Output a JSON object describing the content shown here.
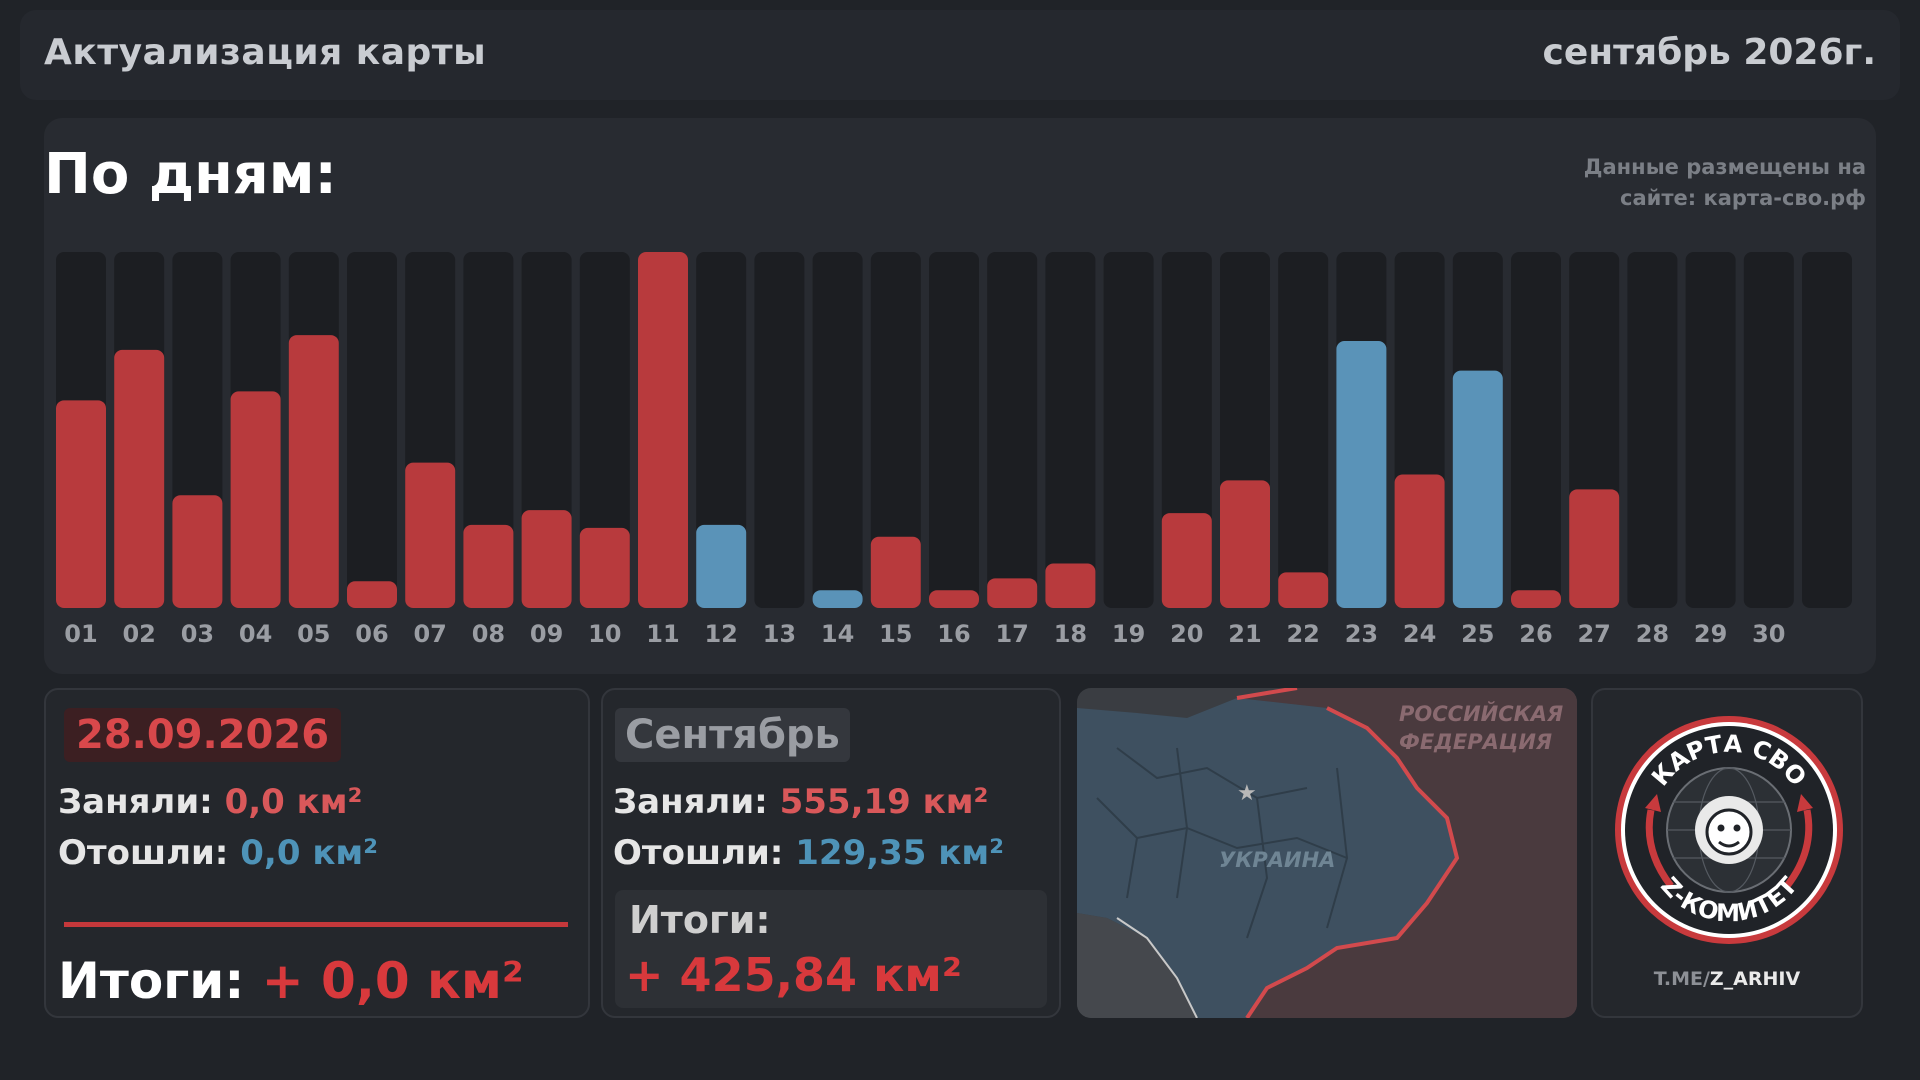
{
  "header": {
    "title": "Актуализация карты",
    "month": "сентябрь 2026г."
  },
  "chart_section": {
    "heading": "По дням:",
    "source_line1": "Данные размещены на",
    "source_line2": "сайте: карта-сво.рф"
  },
  "colors": {
    "gain": "#b83a3d",
    "loss": "#5a93b8",
    "track": "#1c1e22"
  },
  "chart_data": {
    "type": "bar",
    "categories": [
      "01",
      "02",
      "03",
      "04",
      "05",
      "06",
      "07",
      "08",
      "09",
      "10",
      "11",
      "12",
      "13",
      "14",
      "15",
      "16",
      "17",
      "18",
      "19",
      "20",
      "21",
      "22",
      "23",
      "24",
      "25",
      "26",
      "27",
      "28",
      "29",
      "30"
    ],
    "values": [
      70,
      87,
      38,
      73,
      92,
      9,
      49,
      28,
      33,
      27,
      120,
      28,
      0,
      6,
      24,
      6,
      10,
      15,
      0,
      32,
      43,
      12,
      90,
      45,
      80,
      6,
      40,
      0,
      0,
      0
    ],
    "bar_kind": [
      "gain",
      "gain",
      "gain",
      "gain",
      "gain",
      "gain",
      "gain",
      "gain",
      "gain",
      "gain",
      "gain",
      "loss",
      "none",
      "loss",
      "gain",
      "gain",
      "gain",
      "gain",
      "none",
      "gain",
      "gain",
      "gain",
      "loss",
      "gain",
      "loss",
      "gain",
      "gain",
      "none",
      "none",
      "none"
    ],
    "ylim": [
      0,
      120
    ],
    "grid": false,
    "legend": "none"
  },
  "day_card": {
    "date": "28.09.2026",
    "taken_label": "Заняли:",
    "taken_value": "0,0 км²",
    "lost_label": "Отошли:",
    "lost_value": "0,0 км²",
    "total_label": "Итоги:",
    "total_value": "+ 0,0 км²"
  },
  "month_card": {
    "month": "Сентябрь",
    "taken_label": "Заняли:",
    "taken_value": "555,19 км²",
    "lost_label": "Отошли:",
    "lost_value": "129,35 км²",
    "total_label": "Итоги:",
    "total_value": "+ 425,84 км²"
  },
  "map": {
    "russia_line1": "РОССИЙСКАЯ",
    "russia_line2": "ФЕДЕРАЦИЯ",
    "ukraine": "УКРАИНА"
  },
  "logo": {
    "top_text": "КАРТА СВО",
    "bottom_text": "Z-КОМИТЕТ",
    "tg_prefix": "T.ME/",
    "tg_handle": "Z_ARHIV"
  }
}
